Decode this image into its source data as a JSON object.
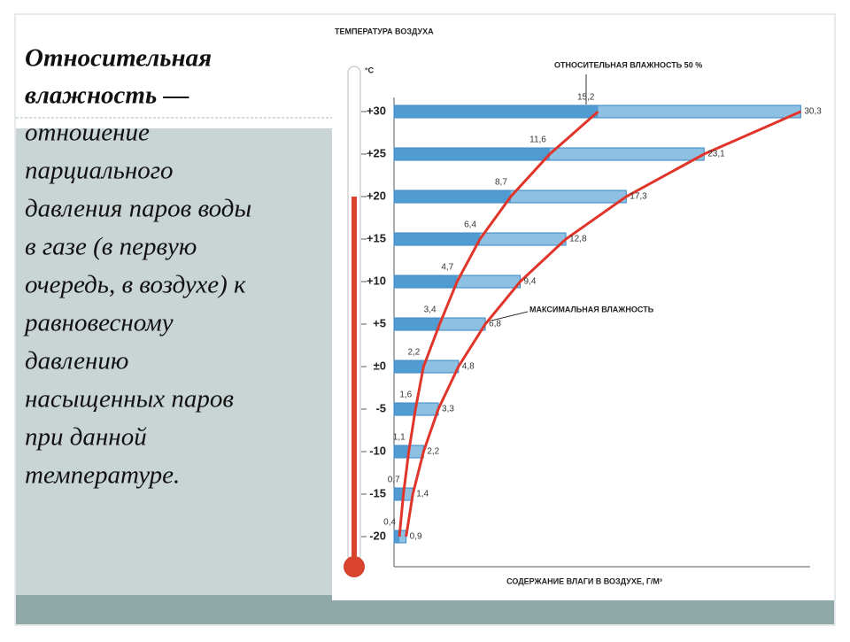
{
  "slide": {
    "heading": [
      "Относительная",
      "влажность —"
    ],
    "body": [
      "отношение",
      "парциального",
      "давления паров воды",
      "в газе (в первую",
      "очередь, в воздухе) к",
      "равновесному",
      "давлению",
      "насыщенных паров",
      "при данной",
      "температуре."
    ]
  },
  "chart_data": {
    "type": "bar",
    "orientation": "horizontal",
    "y_axis_title": "ТЕМПЕРАТУРА ВОЗДУХА",
    "y_unit": "°C",
    "x_axis_title": "СОДЕРЖАНИЕ ВЛАГИ В ВОЗДУХЕ, Г/М³",
    "categories": [
      "+30",
      "+25",
      "+20",
      "+15",
      "+10",
      "+5",
      "±0",
      "-5",
      "-10",
      "-15",
      "-20"
    ],
    "series": [
      {
        "name": "МАКСИМАЛЬНАЯ ВЛАЖНОСТЬ",
        "color": "#e0352b",
        "values": [
          30.3,
          23.1,
          17.3,
          12.8,
          9.4,
          6.8,
          4.8,
          3.3,
          2.2,
          1.4,
          0.9
        ],
        "value_labels": [
          "30,3",
          "23,1",
          "17,3",
          "12,8",
          "9,4",
          "6,8",
          "4,8",
          "3,3",
          "2,2",
          "1,4",
          "0,9"
        ]
      },
      {
        "name": "ОТНОСИТЕЛЬНАЯ ВЛАЖНОСТЬ 50 %",
        "color": "#e0352b",
        "values": [
          15.2,
          11.6,
          8.7,
          6.4,
          4.7,
          3.4,
          2.2,
          1.6,
          1.1,
          0.7,
          0.4
        ],
        "value_labels": [
          "15,2",
          "11,6",
          "8,7",
          "6,4",
          "4,7",
          "3,4",
          "2,2",
          "1,6",
          "1,1",
          "0,7",
          "0,4"
        ]
      }
    ],
    "bar_color": "#8ec0e3",
    "xlim": [
      0,
      31
    ]
  }
}
